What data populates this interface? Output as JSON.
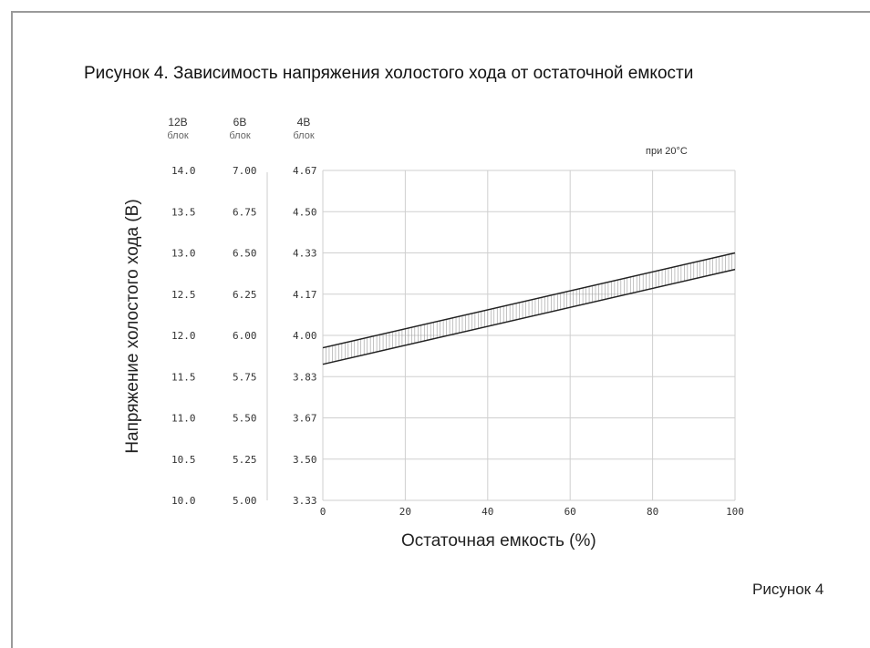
{
  "chart_data": {
    "type": "area",
    "title": "Рисунок 4. Зависимость напряжения холостого хода от остаточной емкости",
    "xlabel": "Остаточная емкость (%)",
    "ylabel": "Напряжение холостого хода (В)",
    "xlim": [
      0,
      100
    ],
    "ylim": [
      10.0,
      14.0
    ],
    "x_ticks": [
      "0",
      "20",
      "40",
      "60",
      "80",
      "100"
    ],
    "grid": true,
    "note": "при 20°C",
    "y_axes": [
      {
        "head": "12В",
        "sub": "блок",
        "ticks": [
          "14.0",
          "13.5",
          "13.0",
          "12.5",
          "12.0",
          "11.5",
          "11.0",
          "10.5",
          "10.0"
        ]
      },
      {
        "head": "6В",
        "sub": "блок",
        "ticks": [
          "7.00",
          "6.75",
          "6.50",
          "6.25",
          "6.00",
          "5.75",
          "5.50",
          "5.25",
          "5.00"
        ]
      },
      {
        "head": "4В",
        "sub": "блок",
        "ticks": [
          "4.67",
          "4.50",
          "4.33",
          "4.17",
          "4.00",
          "3.83",
          "3.67",
          "3.50",
          "3.33"
        ]
      }
    ],
    "series": [
      {
        "x": [
          0,
          100
        ],
        "values": [
          11.85,
          13.0
        ]
      },
      {
        "x": [
          0,
          100
        ],
        "values": [
          11.65,
          12.8
        ]
      }
    ],
    "fill": "hatched band between series",
    "caption": "Рисунок 4"
  },
  "colors": {
    "line": "#222222",
    "grid": "#cfcfcf",
    "hatch": "#999999",
    "frame": "#9a9a9a"
  }
}
